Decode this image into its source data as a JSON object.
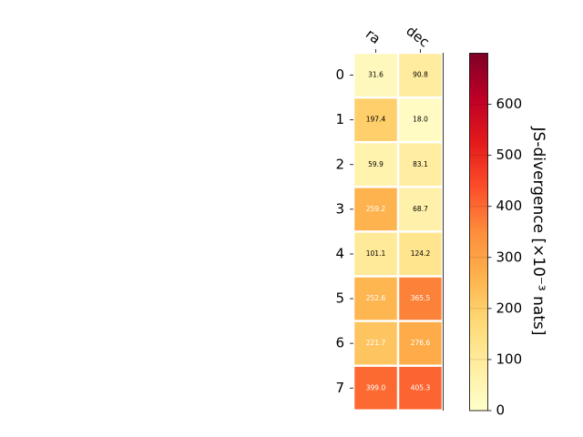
{
  "chart_data": {
    "type": "heatmap",
    "columns": [
      "ra",
      "dec"
    ],
    "rows": [
      "0",
      "1",
      "2",
      "3",
      "4",
      "5",
      "6",
      "7"
    ],
    "values": [
      [
        31.6,
        90.8
      ],
      [
        197.4,
        18.0
      ],
      [
        59.9,
        83.1
      ],
      [
        259.2,
        68.7
      ],
      [
        101.1,
        124.2
      ],
      [
        252.6,
        365.5
      ],
      [
        221.7,
        276.6
      ],
      [
        399.0,
        405.3
      ]
    ],
    "cell_labels": [
      [
        "31.6",
        "90.8"
      ],
      [
        "197.4",
        "18.0"
      ],
      [
        "59.9",
        "83.1"
      ],
      [
        "259.2",
        "68.7"
      ],
      [
        "101.1",
        "124.2"
      ],
      [
        "252.6",
        "365.5"
      ],
      [
        "221.7",
        "276.6"
      ],
      [
        "399.0",
        "405.3"
      ]
    ],
    "colorbar": {
      "label": "JS-divergence [×10⁻³ nats]",
      "range": [
        0,
        700
      ],
      "ticks": [
        "0",
        "100",
        "200",
        "300",
        "400",
        "500",
        "600"
      ],
      "colormap": "YlOrRd"
    },
    "grid": false
  }
}
